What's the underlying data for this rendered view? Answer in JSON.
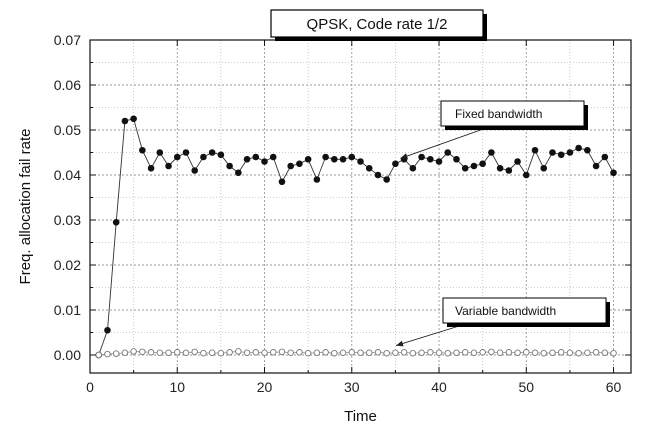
{
  "chart_data": {
    "type": "line",
    "title": "QPSK, Code rate 1/2",
    "xlabel": "Time",
    "ylabel": "Freq. allocation fail rate",
    "xlim": [
      0,
      62
    ],
    "ylim": [
      -0.004,
      0.07
    ],
    "xticks": [
      0,
      10,
      20,
      30,
      40,
      50,
      60
    ],
    "xtick_labels": [
      "0",
      "10",
      "20",
      "30",
      "40",
      "50",
      "60"
    ],
    "yticks": [
      0.0,
      0.01,
      0.02,
      0.03,
      0.04,
      0.05,
      0.06,
      0.07
    ],
    "ytick_labels": [
      "0.00",
      "0.01",
      "0.02",
      "0.03",
      "0.04",
      "0.05",
      "0.06",
      "0.07"
    ],
    "grid": true,
    "x": [
      1,
      2,
      3,
      4,
      5,
      6,
      7,
      8,
      9,
      10,
      11,
      12,
      13,
      14,
      15,
      16,
      17,
      18,
      19,
      20,
      21,
      22,
      23,
      24,
      25,
      26,
      27,
      28,
      29,
      30,
      31,
      32,
      33,
      34,
      35,
      36,
      37,
      38,
      39,
      40,
      41,
      42,
      43,
      44,
      45,
      46,
      47,
      48,
      49,
      50,
      51,
      52,
      53,
      54,
      55,
      56,
      57,
      58,
      59,
      60
    ],
    "series": [
      {
        "name": "",
        "marker": "filled-circle",
        "values": [
          0.0,
          0.0055,
          0.0295,
          0.052,
          0.0525,
          0.0455,
          0.0415,
          0.045,
          0.042,
          0.044,
          0.045,
          0.041,
          0.044,
          0.045,
          0.0445,
          0.042,
          0.0405,
          0.0435,
          0.044,
          0.043,
          0.044,
          0.0385,
          0.042,
          0.0425,
          0.0435,
          0.039,
          0.044,
          0.0435,
          0.0435,
          0.044,
          0.043,
          0.0415,
          0.04,
          0.039,
          0.0425,
          0.0435,
          0.0415,
          0.044,
          0.0435,
          0.043,
          0.045,
          0.0435,
          0.0415,
          0.042,
          0.0425,
          0.045,
          0.0415,
          0.041,
          0.043,
          0.04,
          0.0455,
          0.0415,
          0.045,
          0.0445,
          0.045,
          0.046,
          0.0455,
          0.042,
          0.044,
          0.0405
        ]
      },
      {
        "name": "",
        "marker": "open-circle",
        "values": [
          0.0,
          0.0002,
          0.0003,
          0.0005,
          0.0008,
          0.0007,
          0.0006,
          0.0005,
          0.0005,
          0.0006,
          0.0005,
          0.0007,
          0.0004,
          0.0005,
          0.0004,
          0.0006,
          0.0008,
          0.0005,
          0.0006,
          0.0005,
          0.0006,
          0.0007,
          0.0005,
          0.0006,
          0.0004,
          0.0005,
          0.0006,
          0.0004,
          0.0005,
          0.0006,
          0.0005,
          0.0005,
          0.0006,
          0.0004,
          0.0005,
          0.0006,
          0.0004,
          0.0005,
          0.0006,
          0.0005,
          0.0004,
          0.0005,
          0.0006,
          0.0005,
          0.0006,
          0.0007,
          0.0005,
          0.0006,
          0.0005,
          0.0006,
          0.0005,
          0.0004,
          0.0005,
          0.0006,
          0.0005,
          0.0004,
          0.0005,
          0.0006,
          0.0005,
          0.0004
        ]
      }
    ],
    "annotations": [
      {
        "text": "Fixed bandwidth",
        "target": {
          "x": 35,
          "y": 0.0428
        }
      },
      {
        "text": "Variable bandwidth",
        "target": {
          "x": 34.5,
          "y": 0.0012
        }
      }
    ]
  }
}
